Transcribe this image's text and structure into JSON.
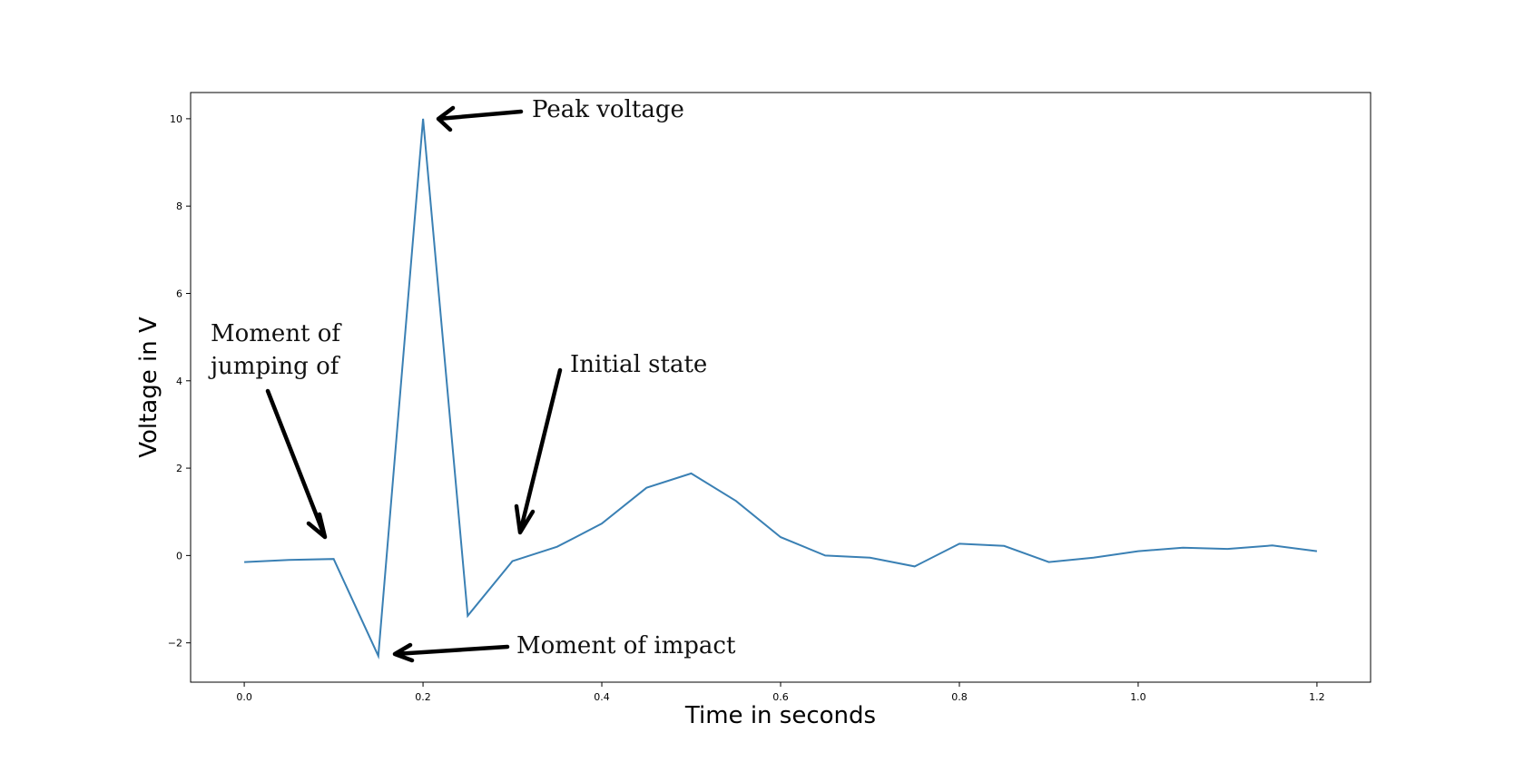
{
  "chart_data": {
    "type": "line",
    "xlabel": "Time in seconds",
    "ylabel": "Voltage in V",
    "xlim": [
      -0.06,
      1.26
    ],
    "ylim": [
      -2.9,
      10.6
    ],
    "x_ticks": [
      0.0,
      0.2,
      0.4,
      0.6,
      0.8,
      1.0,
      1.2
    ],
    "x_tick_labels": [
      "0.0",
      "0.2",
      "0.4",
      "0.6",
      "0.8",
      "1.0",
      "1.2"
    ],
    "y_ticks": [
      -2,
      0,
      2,
      4,
      6,
      8,
      10
    ],
    "y_tick_labels": [
      "−2",
      "0",
      "2",
      "4",
      "6",
      "8",
      "10"
    ],
    "grid": false,
    "line_color": "#3a80b4",
    "series": [
      {
        "x": [
          0.0,
          0.05,
          0.1,
          0.15,
          0.2,
          0.25,
          0.3,
          0.35,
          0.4,
          0.45,
          0.5,
          0.55,
          0.6,
          0.65,
          0.7,
          0.75,
          0.8,
          0.85,
          0.9,
          0.95,
          1.0,
          1.05,
          1.1,
          1.15,
          1.2
        ],
        "y": [
          -0.15,
          -0.1,
          -0.08,
          -2.3,
          10.0,
          -1.38,
          -0.13,
          0.2,
          0.73,
          1.55,
          1.88,
          1.25,
          0.42,
          0.0,
          -0.05,
          -0.25,
          0.27,
          0.22,
          -0.15,
          -0.05,
          0.1,
          0.18,
          0.15,
          0.23,
          0.1
        ]
      }
    ],
    "annotations": [
      {
        "lines": [
          "Peak voltage"
        ],
        "point": [
          0.2,
          10.0
        ]
      },
      {
        "lines": [
          "Moment of",
          "jumping of"
        ],
        "point": [
          0.1,
          -0.08
        ]
      },
      {
        "lines": [
          "Initial state"
        ],
        "point": [
          0.3,
          -0.13
        ]
      },
      {
        "lines": [
          "Moment of impact"
        ],
        "point": [
          0.15,
          -2.3
        ]
      }
    ]
  }
}
